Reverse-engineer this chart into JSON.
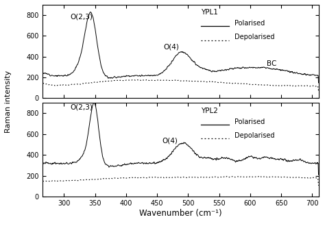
{
  "xlabel": "Wavenumber (cm⁻¹)",
  "ylabel": "Raman intensity",
  "xmin": 265,
  "xmax": 710,
  "ypl1_ylim": [
    0,
    900
  ],
  "ypl2_ylim": [
    0,
    900
  ],
  "ypl1_yticks": [
    0,
    200,
    400,
    600,
    800
  ],
  "ypl2_yticks": [
    0,
    200,
    400,
    600,
    800
  ],
  "xticks": [
    300,
    350,
    400,
    450,
    500,
    550,
    600,
    650,
    700
  ],
  "label_ypl1": "YPL1",
  "label_ypl2": "YPL2",
  "label_polarised": "Polarised",
  "label_depolarised": "Depolarised",
  "label_bc": "BC",
  "ann1_text": "O(2,3)",
  "ann1_x": 310,
  "ann1_y": 760,
  "ann2_text": "O(4)",
  "ann2_x": 460,
  "ann2_y": 470,
  "ann3_text": "BC",
  "ann3_x": 627,
  "ann3_y": 310,
  "ann4_text": "O(2,3)",
  "ann4_x": 310,
  "ann4_y": 840,
  "ann5_text": "O(4)",
  "ann5_x": 458,
  "ann5_y": 520
}
